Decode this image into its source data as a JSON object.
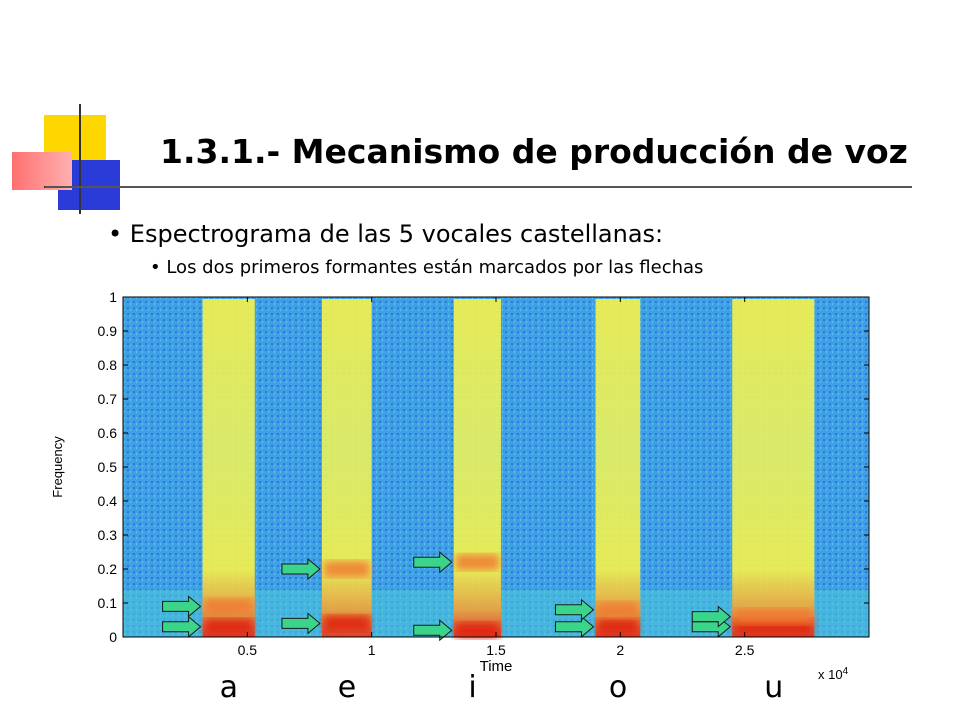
{
  "slide": {
    "title": "1.3.1.- Mecanismo de producción de voz",
    "bullet_1": "Espectrograma de las 5 vocales castellanas:",
    "bullet_2": "Los dos primeros formantes están marcados por las flechas"
  },
  "chart_data": {
    "type": "heatmap",
    "xlabel": "Time",
    "ylabel": "Frequency",
    "x_multiplier": "x 10^4",
    "xlim": [
      0,
      3
    ],
    "ylim": [
      0,
      1
    ],
    "x_ticks": [
      0.5,
      1,
      1.5,
      2,
      2.5
    ],
    "x_tick_labels": [
      "0.5",
      "1",
      "1.5",
      "2",
      "2.5"
    ],
    "y_ticks": [
      0,
      0.1,
      0.2,
      0.3,
      0.4,
      0.5,
      0.6,
      0.7,
      0.8,
      0.9,
      1
    ],
    "y_tick_labels": [
      "0",
      "0.1",
      "0.2",
      "0.3",
      "0.4",
      "0.5",
      "0.6",
      "0.7",
      "0.8",
      "0.9",
      "1"
    ],
    "vowels": [
      {
        "label": "a",
        "t_start": 0.32,
        "t_end": 0.53,
        "formants": [
          0.03,
          0.09
        ]
      },
      {
        "label": "e",
        "t_start": 0.8,
        "t_end": 1.0,
        "formants": [
          0.04,
          0.2
        ]
      },
      {
        "label": "i",
        "t_start": 1.33,
        "t_end": 1.52,
        "formants": [
          0.02,
          0.22
        ]
      },
      {
        "label": "o",
        "t_start": 1.9,
        "t_end": 2.08,
        "formants": [
          0.03,
          0.08
        ]
      },
      {
        "label": "u",
        "t_start": 2.45,
        "t_end": 2.78,
        "formants": [
          0.03,
          0.06
        ]
      }
    ],
    "colors": {
      "background": "#3fa0e8",
      "mid": "#f4f04c",
      "high": "#e8341c"
    }
  }
}
